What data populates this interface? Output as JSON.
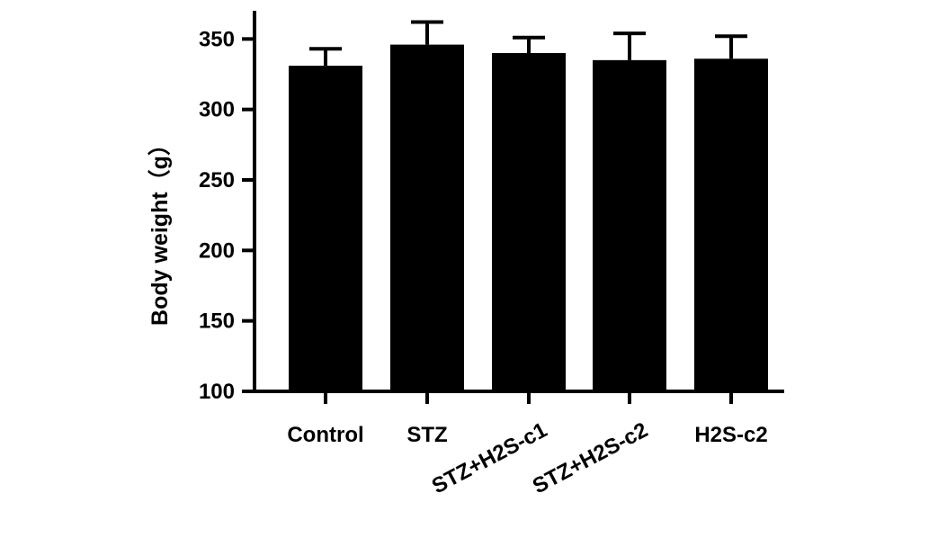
{
  "chart_data": {
    "type": "bar",
    "categories": [
      "Control",
      "STZ",
      "STZ+H2S-c1",
      "STZ+H2S-c2",
      "H2S-c2"
    ],
    "values": [
      331,
      346,
      340,
      335,
      336
    ],
    "error_upper": [
      12,
      16,
      11,
      19,
      16
    ],
    "ylabel": "Body weight（g）",
    "xlabel": "",
    "ylim": [
      100,
      370
    ],
    "yticks": [
      100,
      150,
      200,
      250,
      300,
      350
    ],
    "grid": false,
    "bar_color": "#000000",
    "rotated_category_labels": [
      "STZ+H2S-c1",
      "STZ+H2S-c2"
    ]
  }
}
